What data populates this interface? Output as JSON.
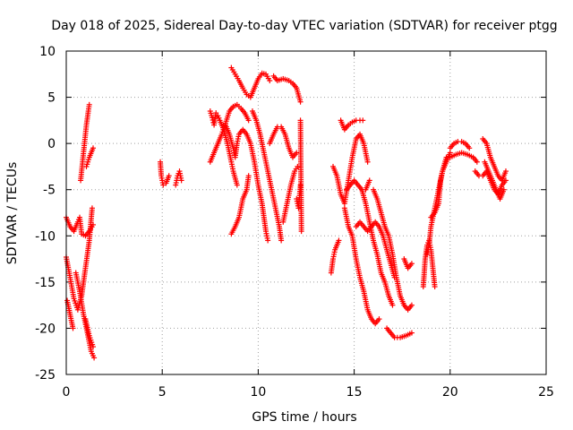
{
  "chart_data": {
    "type": "scatter",
    "title": "Day 018 of 2025, Sidereal Day-to-day VTEC variation (SDTVAR) for receiver ptgg",
    "xlabel": "GPS time / hours",
    "ylabel": "SDTVAR / TECUs",
    "xlim": [
      0,
      25
    ],
    "ylim": [
      -25,
      10
    ],
    "x_ticks": [
      0,
      5,
      10,
      15,
      20,
      25
    ],
    "y_ticks": [
      -25,
      -20,
      -15,
      -10,
      -5,
      0,
      5,
      10
    ],
    "grid": true,
    "marker": "plus",
    "color": "#ff0000",
    "tracks": [
      [
        [
          0.0,
          -12.3
        ],
        [
          0.2,
          -14.5
        ],
        [
          0.4,
          -16.8
        ],
        [
          0.6,
          -18.0
        ],
        [
          0.8,
          -16.5
        ],
        [
          1.0,
          -13.5
        ],
        [
          1.2,
          -10.5
        ],
        [
          1.35,
          -7.0
        ]
      ],
      [
        [
          0.05,
          -17.0
        ],
        [
          0.2,
          -18.5
        ],
        [
          0.35,
          -20.0
        ]
      ],
      [
        [
          0.0,
          -8.0
        ],
        [
          0.2,
          -9.0
        ],
        [
          0.4,
          -9.5
        ],
        [
          0.6,
          -8.5
        ],
        [
          0.7,
          -8.0
        ],
        [
          0.8,
          -9.8
        ],
        [
          1.0,
          -10.0
        ],
        [
          1.2,
          -9.5
        ],
        [
          1.4,
          -8.8
        ]
      ],
      [
        [
          0.5,
          -14.0
        ],
        [
          0.7,
          -16.0
        ],
        [
          0.9,
          -18.5
        ],
        [
          1.1,
          -20.5
        ],
        [
          1.3,
          -22.5
        ],
        [
          1.45,
          -23.2
        ]
      ],
      [
        [
          1.0,
          -19.0
        ],
        [
          1.2,
          -20.8
        ],
        [
          1.4,
          -22.0
        ]
      ],
      [
        [
          0.75,
          -4.0
        ],
        [
          0.85,
          -2.0
        ],
        [
          0.95,
          0.0
        ],
        [
          1.05,
          2.0
        ],
        [
          1.15,
          3.5
        ],
        [
          1.2,
          4.2
        ]
      ],
      [
        [
          1.05,
          -2.5
        ],
        [
          1.2,
          -1.5
        ],
        [
          1.4,
          -0.5
        ]
      ],
      [
        [
          4.9,
          -2.0
        ],
        [
          4.95,
          -3.5
        ],
        [
          5.05,
          -4.5
        ],
        [
          5.2,
          -4.3
        ],
        [
          5.35,
          -3.5
        ]
      ],
      [
        [
          5.7,
          -4.5
        ],
        [
          5.8,
          -3.5
        ],
        [
          5.9,
          -3.0
        ],
        [
          6.0,
          -4.0
        ]
      ],
      [
        [
          7.5,
          -2.0
        ],
        [
          7.7,
          -1.0
        ],
        [
          7.9,
          0.0
        ],
        [
          8.1,
          1.0
        ],
        [
          8.3,
          2.2
        ],
        [
          8.5,
          3.5
        ],
        [
          8.7,
          4.0
        ],
        [
          8.9,
          4.2
        ],
        [
          9.1,
          3.8
        ],
        [
          9.3,
          3.3
        ],
        [
          9.5,
          2.5
        ]
      ],
      [
        [
          7.5,
          3.5
        ],
        [
          7.6,
          2.8
        ],
        [
          7.7,
          2.0
        ],
        [
          7.8,
          3.3
        ],
        [
          7.9,
          3.0
        ],
        [
          8.0,
          2.5
        ],
        [
          8.2,
          1.5
        ],
        [
          8.4,
          0.0
        ],
        [
          8.6,
          -2.0
        ],
        [
          8.7,
          -3.0
        ],
        [
          8.9,
          -4.5
        ]
      ],
      [
        [
          8.6,
          8.2
        ],
        [
          8.8,
          7.5
        ],
        [
          9.0,
          6.8
        ],
        [
          9.2,
          6.0
        ],
        [
          9.4,
          5.3
        ],
        [
          9.6,
          5.0
        ],
        [
          9.8,
          6.0
        ],
        [
          10.0,
          7.0
        ],
        [
          10.2,
          7.6
        ],
        [
          10.4,
          7.5
        ],
        [
          10.6,
          6.8
        ]
      ],
      [
        [
          10.8,
          7.3
        ],
        [
          11.0,
          6.8
        ],
        [
          11.3,
          7.0
        ],
        [
          11.6,
          6.8
        ],
        [
          11.8,
          6.5
        ],
        [
          12.0,
          6.0
        ],
        [
          12.2,
          4.5
        ]
      ],
      [
        [
          8.3,
          2.0
        ],
        [
          8.5,
          1.0
        ],
        [
          8.7,
          -0.5
        ],
        [
          8.8,
          -1.5
        ],
        [
          8.9,
          0.0
        ],
        [
          9.0,
          1.0
        ],
        [
          9.2,
          1.5
        ],
        [
          9.4,
          1.0
        ],
        [
          9.6,
          0.0
        ],
        [
          9.8,
          -2.0
        ],
        [
          10.0,
          -4.5
        ],
        [
          10.2,
          -6.5
        ],
        [
          10.3,
          -8.0
        ],
        [
          10.4,
          -9.5
        ],
        [
          10.5,
          -10.5
        ]
      ],
      [
        [
          9.7,
          3.5
        ],
        [
          9.9,
          2.5
        ],
        [
          10.1,
          1.0
        ],
        [
          10.3,
          -1.0
        ],
        [
          10.5,
          -3.0
        ],
        [
          10.7,
          -5.0
        ],
        [
          10.9,
          -7.0
        ],
        [
          11.1,
          -9.0
        ],
        [
          11.2,
          -10.5
        ]
      ],
      [
        [
          10.6,
          0.0
        ],
        [
          10.8,
          1.0
        ],
        [
          11.0,
          1.8
        ],
        [
          11.2,
          1.8
        ],
        [
          11.4,
          1.0
        ],
        [
          11.6,
          -0.5
        ],
        [
          11.8,
          -1.5
        ],
        [
          12.0,
          -1.0
        ]
      ],
      [
        [
          8.6,
          -9.8
        ],
        [
          8.8,
          -9.0
        ],
        [
          9.0,
          -8.0
        ],
        [
          9.2,
          -6.0
        ],
        [
          9.4,
          -5.0
        ],
        [
          9.5,
          -3.5
        ]
      ],
      [
        [
          11.3,
          -8.5
        ],
        [
          11.5,
          -6.5
        ],
        [
          11.7,
          -4.5
        ],
        [
          11.9,
          -3.0
        ],
        [
          12.05,
          -2.5
        ]
      ],
      [
        [
          12.0,
          -6.0
        ],
        [
          12.1,
          -7.0
        ],
        [
          12.2,
          -4.5
        ]
      ],
      [
        [
          12.2,
          2.5
        ],
        [
          12.25,
          -9.5
        ]
      ],
      [
        [
          13.8,
          -14.0
        ],
        [
          13.9,
          -12.5
        ],
        [
          14.0,
          -11.5
        ],
        [
          14.2,
          -10.5
        ]
      ],
      [
        [
          13.9,
          -2.5
        ],
        [
          14.1,
          -3.5
        ],
        [
          14.3,
          -5.5
        ],
        [
          14.5,
          -6.5
        ],
        [
          14.7,
          -4.0
        ],
        [
          14.9,
          -1.5
        ],
        [
          15.1,
          0.5
        ],
        [
          15.3,
          1.0
        ],
        [
          15.5,
          0.0
        ],
        [
          15.7,
          -2.0
        ]
      ],
      [
        [
          14.5,
          -7.0
        ],
        [
          14.7,
          -9.0
        ],
        [
          14.9,
          -10.0
        ],
        [
          15.1,
          -12.5
        ],
        [
          15.3,
          -14.5
        ],
        [
          15.5,
          -16.0
        ],
        [
          15.7,
          -18.0
        ],
        [
          15.9,
          -19.0
        ],
        [
          16.1,
          -19.5
        ],
        [
          16.3,
          -19.0
        ]
      ],
      [
        [
          14.6,
          -5.0
        ],
        [
          14.8,
          -4.5
        ],
        [
          15.0,
          -4.0
        ],
        [
          15.2,
          -4.5
        ],
        [
          15.4,
          -5.0
        ],
        [
          15.6,
          -5.0
        ],
        [
          15.8,
          -4.0
        ]
      ],
      [
        [
          14.3,
          2.5
        ],
        [
          14.5,
          1.5
        ],
        [
          14.7,
          2.0
        ],
        [
          14.9,
          2.3
        ],
        [
          15.1,
          2.5
        ],
        [
          15.3,
          2.5
        ],
        [
          15.45,
          2.5
        ]
      ],
      [
        [
          15.1,
          -9.0
        ],
        [
          15.3,
          -8.5
        ],
        [
          15.5,
          -9.0
        ],
        [
          15.7,
          -9.5
        ],
        [
          15.9,
          -9.0
        ],
        [
          16.1,
          -8.5
        ],
        [
          16.3,
          -9.0
        ],
        [
          16.5,
          -10.0
        ],
        [
          16.7,
          -11.5
        ],
        [
          16.9,
          -13.0
        ],
        [
          17.1,
          -14.5
        ]
      ],
      [
        [
          15.4,
          -5.0
        ],
        [
          15.6,
          -6.5
        ],
        [
          15.8,
          -8.5
        ],
        [
          16.0,
          -10.5
        ],
        [
          16.2,
          -12.0
        ],
        [
          16.4,
          -14.0
        ],
        [
          16.6,
          -15.0
        ],
        [
          16.8,
          -16.5
        ],
        [
          17.0,
          -17.5
        ]
      ],
      [
        [
          16.7,
          -20.0
        ],
        [
          16.9,
          -20.5
        ],
        [
          17.1,
          -21.0
        ],
        [
          17.4,
          -21.0
        ],
        [
          17.7,
          -20.8
        ],
        [
          18.0,
          -20.5
        ]
      ],
      [
        [
          16.0,
          -5.0
        ],
        [
          16.2,
          -6.0
        ],
        [
          16.4,
          -7.5
        ],
        [
          16.6,
          -9.0
        ],
        [
          16.8,
          -10.0
        ],
        [
          17.0,
          -12.0
        ],
        [
          17.2,
          -14.5
        ],
        [
          17.4,
          -16.5
        ],
        [
          17.6,
          -17.5
        ],
        [
          17.8,
          -18.0
        ],
        [
          18.0,
          -17.5
        ]
      ],
      [
        [
          17.6,
          -12.5
        ],
        [
          17.8,
          -13.5
        ],
        [
          18.0,
          -13.0
        ]
      ],
      [
        [
          18.6,
          -15.5
        ],
        [
          18.7,
          -12.5
        ],
        [
          18.8,
          -11.0
        ],
        [
          18.9,
          -10.5
        ],
        [
          19.0,
          -11.5
        ],
        [
          19.1,
          -13.5
        ],
        [
          19.2,
          -15.5
        ]
      ],
      [
        [
          18.8,
          -12.0
        ],
        [
          18.9,
          -11.0
        ],
        [
          19.0,
          -9.0
        ],
        [
          19.2,
          -7.0
        ],
        [
          19.4,
          -5.0
        ],
        [
          19.6,
          -3.0
        ],
        [
          19.8,
          -2.0
        ],
        [
          20.0,
          -1.0
        ]
      ],
      [
        [
          19.0,
          -8.0
        ],
        [
          19.2,
          -7.5
        ],
        [
          19.4,
          -6.5
        ],
        [
          19.5,
          -4.0
        ],
        [
          19.6,
          -3.0
        ],
        [
          19.8,
          -1.5
        ]
      ],
      [
        [
          20.0,
          -0.5
        ],
        [
          20.2,
          0.0
        ],
        [
          20.4,
          0.2
        ],
        [
          20.6,
          0.2
        ],
        [
          20.8,
          0.0
        ],
        [
          21.0,
          -0.5
        ]
      ],
      [
        [
          20.0,
          -1.5
        ],
        [
          20.3,
          -1.2
        ],
        [
          20.6,
          -1.0
        ],
        [
          20.9,
          -1.2
        ],
        [
          21.2,
          -1.5
        ],
        [
          21.4,
          -2.0
        ]
      ],
      [
        [
          21.7,
          0.5
        ],
        [
          21.9,
          0.0
        ],
        [
          22.1,
          -1.5
        ],
        [
          22.3,
          -2.5
        ],
        [
          22.5,
          -3.5
        ],
        [
          22.7,
          -4.0
        ],
        [
          22.9,
          -3.0
        ]
      ],
      [
        [
          21.3,
          -3.0
        ],
        [
          21.5,
          -3.5
        ],
        [
          21.7,
          -3.5
        ],
        [
          21.9,
          -3.0
        ],
        [
          22.1,
          -4.0
        ],
        [
          22.3,
          -5.0
        ],
        [
          22.5,
          -5.5
        ],
        [
          22.7,
          -4.5
        ],
        [
          22.9,
          -4.0
        ]
      ],
      [
        [
          21.8,
          -2.0
        ],
        [
          22.0,
          -3.0
        ],
        [
          22.2,
          -4.0
        ],
        [
          22.4,
          -5.0
        ],
        [
          22.6,
          -6.0
        ],
        [
          22.8,
          -5.0
        ]
      ]
    ]
  }
}
